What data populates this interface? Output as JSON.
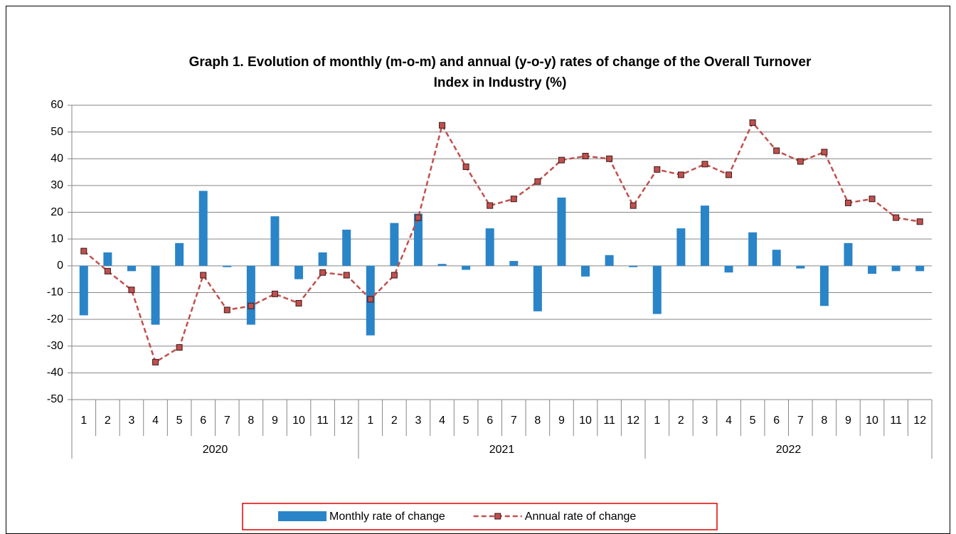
{
  "chart_data": {
    "type": "bar_line",
    "title": [
      "Graph 1. Evolution of monthly (m-o-m) and annual (y-o-y) rates of change of the Overall Turnover",
      "Index in Industry (%)"
    ],
    "categories": [
      "1",
      "2",
      "3",
      "4",
      "5",
      "6",
      "7",
      "8",
      "9",
      "10",
      "11",
      "12",
      "1",
      "2",
      "3",
      "4",
      "5",
      "6",
      "7",
      "8",
      "9",
      "10",
      "11",
      "12",
      "1",
      "2",
      "3",
      "4",
      "5",
      "6",
      "7",
      "8",
      "9",
      "10",
      "11",
      "12"
    ],
    "category_groups": [
      "2020",
      "2021",
      "2022"
    ],
    "series": [
      {
        "name": "Monthly rate of change",
        "type": "bar",
        "color": "#2a84c8",
        "values": [
          -18.5,
          5,
          -2,
          -22,
          8.5,
          28,
          -0.5,
          -22,
          18.5,
          -5,
          5,
          13.5,
          -26,
          16,
          19.5,
          0.7,
          -1.5,
          14,
          1.8,
          -17,
          25.5,
          -4,
          4,
          -0.5,
          -18,
          14,
          22.5,
          -2.5,
          12.5,
          6,
          -1,
          -15,
          8.5,
          -3,
          -2,
          -2
        ]
      },
      {
        "name": "Annual rate of change",
        "type": "line",
        "color": "#c0504d",
        "values": [
          5.5,
          -2,
          -9,
          -36,
          -30.5,
          -3.5,
          -16.5,
          -15,
          -10.5,
          -14,
          -2.5,
          -3.5,
          -12.5,
          -3.5,
          18,
          52.5,
          37,
          22.5,
          25,
          31.5,
          39.5,
          41,
          40,
          22.5,
          36,
          34,
          38,
          34,
          53.5,
          43,
          39,
          42.5,
          23.5,
          25,
          18,
          16.5
        ]
      }
    ],
    "ylim": [
      -50,
      60
    ],
    "yticks": [
      -50,
      -40,
      -30,
      -20,
      -10,
      0,
      10,
      20,
      30,
      40,
      50,
      60
    ],
    "grid": true,
    "legend": "bottom"
  }
}
